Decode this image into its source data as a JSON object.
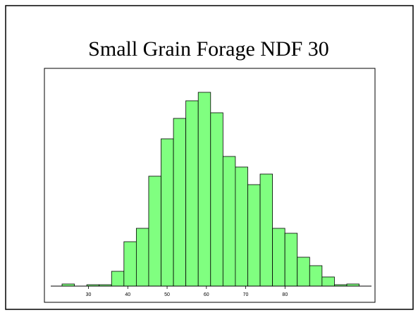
{
  "chart_data": {
    "type": "histogram",
    "title": "Small Grain Forage NDF 30",
    "bins": [
      23.27,
      26.42,
      29.57,
      32.72,
      35.87,
      39.02,
      42.17,
      45.32,
      48.47,
      51.62,
      54.77,
      57.92,
      61.07,
      64.22,
      67.37,
      70.52,
      73.67,
      76.82,
      79.97,
      83.12,
      86.27,
      89.42,
      92.57,
      95.72,
      98.87
    ],
    "values": [
      3,
      0,
      2,
      2,
      21,
      63,
      82,
      156,
      209,
      238,
      263,
      275,
      246,
      184,
      169,
      144,
      159,
      82,
      75,
      41,
      29,
      13,
      2,
      3
    ],
    "color": "#80ff80",
    "xlim": [
      20.4,
      102
    ],
    "xticks": [
      30,
      40,
      50,
      60,
      70,
      80
    ],
    "ylim": [
      0,
      290
    ]
  }
}
